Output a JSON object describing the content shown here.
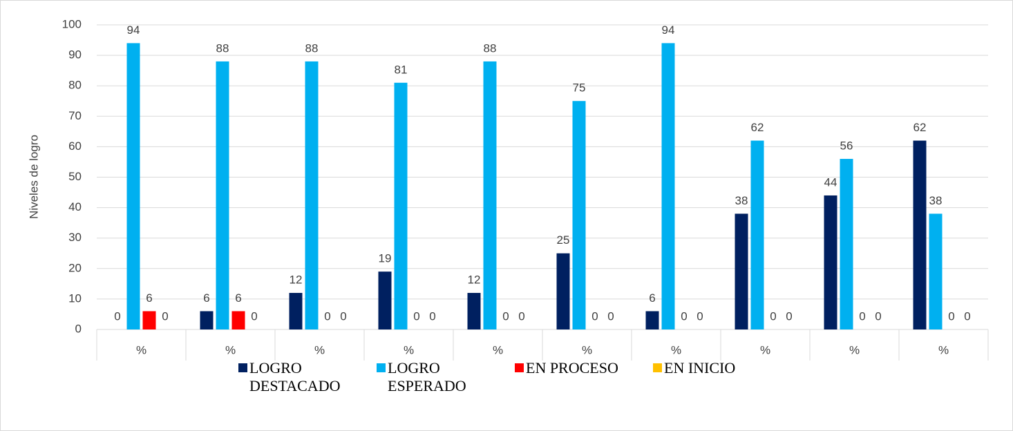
{
  "chart_data": {
    "type": "bar",
    "y_label": "Niveles de logro",
    "categories": [
      "%",
      "%",
      "%",
      "%",
      "%",
      "%",
      "%",
      "%",
      "%",
      "%"
    ],
    "series": [
      {
        "name": "LOGRO DESTACADO",
        "color": "#002060",
        "values": [
          0,
          6,
          12,
          19,
          12,
          25,
          6,
          38,
          44,
          62
        ]
      },
      {
        "name": "LOGRO ESPERADO",
        "color": "#00b0f0",
        "values": [
          94,
          88,
          88,
          81,
          88,
          75,
          94,
          62,
          56,
          38
        ]
      },
      {
        "name": "EN PROCESO",
        "color": "#ff0000",
        "values": [
          6,
          6,
          0,
          0,
          0,
          0,
          0,
          0,
          0,
          0
        ]
      },
      {
        "name": "EN INICIO",
        "color": "#ffc000",
        "values": [
          0,
          0,
          0,
          0,
          0,
          0,
          0,
          0,
          0,
          0
        ]
      }
    ],
    "ylim": [
      0,
      100
    ],
    "yticks": [
      0,
      10,
      20,
      30,
      40,
      50,
      60,
      70,
      80,
      90,
      100
    ],
    "grid": true,
    "legend": "bottom"
  }
}
